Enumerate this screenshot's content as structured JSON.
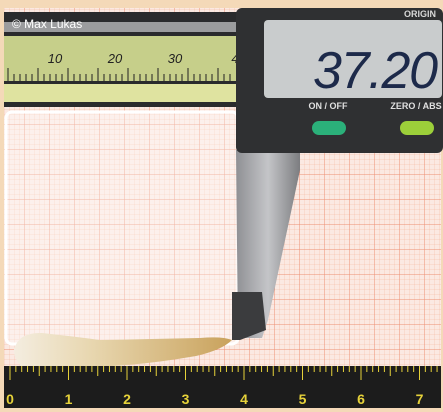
{
  "watermark": "© Max Lukas",
  "display": {
    "label": "ORIGIN",
    "reading": "37.20"
  },
  "buttons": [
    "ON / OFF",
    "ZERO / ABS"
  ],
  "caliper_scale": [
    "10",
    "20",
    "30",
    "4"
  ],
  "ruler_scale": [
    "0",
    "1",
    "2",
    "3",
    "4",
    "5",
    "6",
    "7"
  ]
}
